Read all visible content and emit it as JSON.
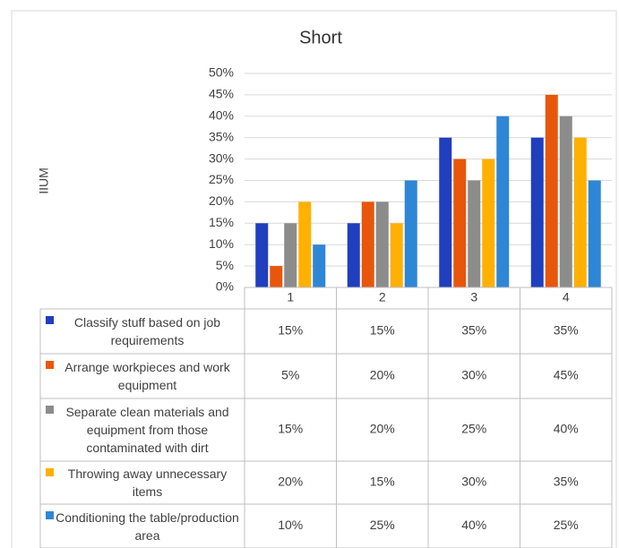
{
  "chart_data": {
    "type": "bar",
    "title": "Short",
    "ylabel": "IIUM",
    "categories": [
      "1",
      "2",
      "3",
      "4"
    ],
    "series": [
      {
        "name": "Classify stuff based on job requirements",
        "color": "#1f3fbf",
        "values": [
          15,
          15,
          35,
          35
        ],
        "value_labels": [
          "15%",
          "15%",
          "35%",
          "35%"
        ]
      },
      {
        "name": "Arrange workpieces and work equipment",
        "color": "#e8560c",
        "values": [
          5,
          20,
          30,
          45
        ],
        "value_labels": [
          "5%",
          "20%",
          "30%",
          "45%"
        ]
      },
      {
        "name": "Separate clean materials and equipment from those contaminated with dirt",
        "color": "#8c8c8c",
        "values": [
          15,
          20,
          25,
          40
        ],
        "value_labels": [
          "15%",
          "20%",
          "25%",
          "40%"
        ]
      },
      {
        "name": "Throwing away unnecessary items",
        "color": "#ffb000",
        "values": [
          20,
          15,
          30,
          35
        ],
        "value_labels": [
          "20%",
          "15%",
          "30%",
          "35%"
        ]
      },
      {
        "name": "Conditioning the table/production area",
        "color": "#2e86d6",
        "values": [
          10,
          25,
          40,
          25
        ],
        "value_labels": [
          "10%",
          "25%",
          "40%",
          "25%"
        ]
      }
    ],
    "ylim": [
      0,
      50
    ],
    "yticks": [
      {
        "value": 0,
        "label": "0%"
      },
      {
        "value": 5,
        "label": "5%"
      },
      {
        "value": 10,
        "label": "10%"
      },
      {
        "value": 15,
        "label": "15%"
      },
      {
        "value": 20,
        "label": "20%"
      },
      {
        "value": 25,
        "label": "25%"
      },
      {
        "value": 30,
        "label": "30%"
      },
      {
        "value": 35,
        "label": "35%"
      },
      {
        "value": 40,
        "label": "40%"
      },
      {
        "value": 45,
        "label": "45%"
      },
      {
        "value": 50,
        "label": "50%"
      }
    ],
    "grid": true
  }
}
